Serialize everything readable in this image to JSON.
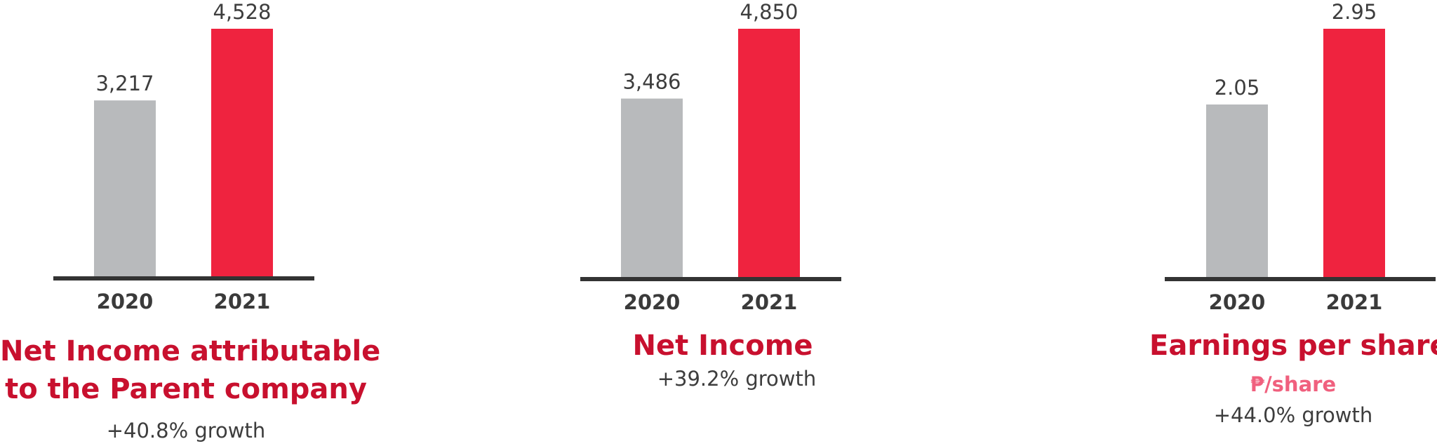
{
  "colors": {
    "previous_year": "#b8babc",
    "current_year": "#ef233f",
    "axis": "#333333",
    "title": "#c8102e",
    "unit": "#f0607e"
  },
  "chart_data": [
    {
      "type": "bar",
      "title_lines": [
        "Net Income attributable",
        "to the Parent company"
      ],
      "unit": "",
      "growth": "+40.8% growth",
      "categories": [
        "2020",
        "2021"
      ],
      "values": [
        3217,
        4528
      ],
      "value_labels": [
        "3,217",
        "4,528"
      ],
      "ylim": [
        0,
        4528
      ],
      "grid": false,
      "legend": "none"
    },
    {
      "type": "bar",
      "title_lines": [
        "Net Income"
      ],
      "unit": "",
      "growth": "+39.2% growth",
      "categories": [
        "2020",
        "2021"
      ],
      "values": [
        3486,
        4850
      ],
      "value_labels": [
        "3,486",
        "4,850"
      ],
      "ylim": [
        0,
        4850
      ],
      "grid": false,
      "legend": "none"
    },
    {
      "type": "bar",
      "title_lines": [
        "Earnings per share"
      ],
      "unit": "₱/share",
      "growth": "+44.0% growth",
      "categories": [
        "2020",
        "2021"
      ],
      "values": [
        2.05,
        2.95
      ],
      "value_labels": [
        "2.05",
        "2.95"
      ],
      "ylim": [
        0,
        2.95
      ],
      "grid": false,
      "legend": "none"
    }
  ]
}
